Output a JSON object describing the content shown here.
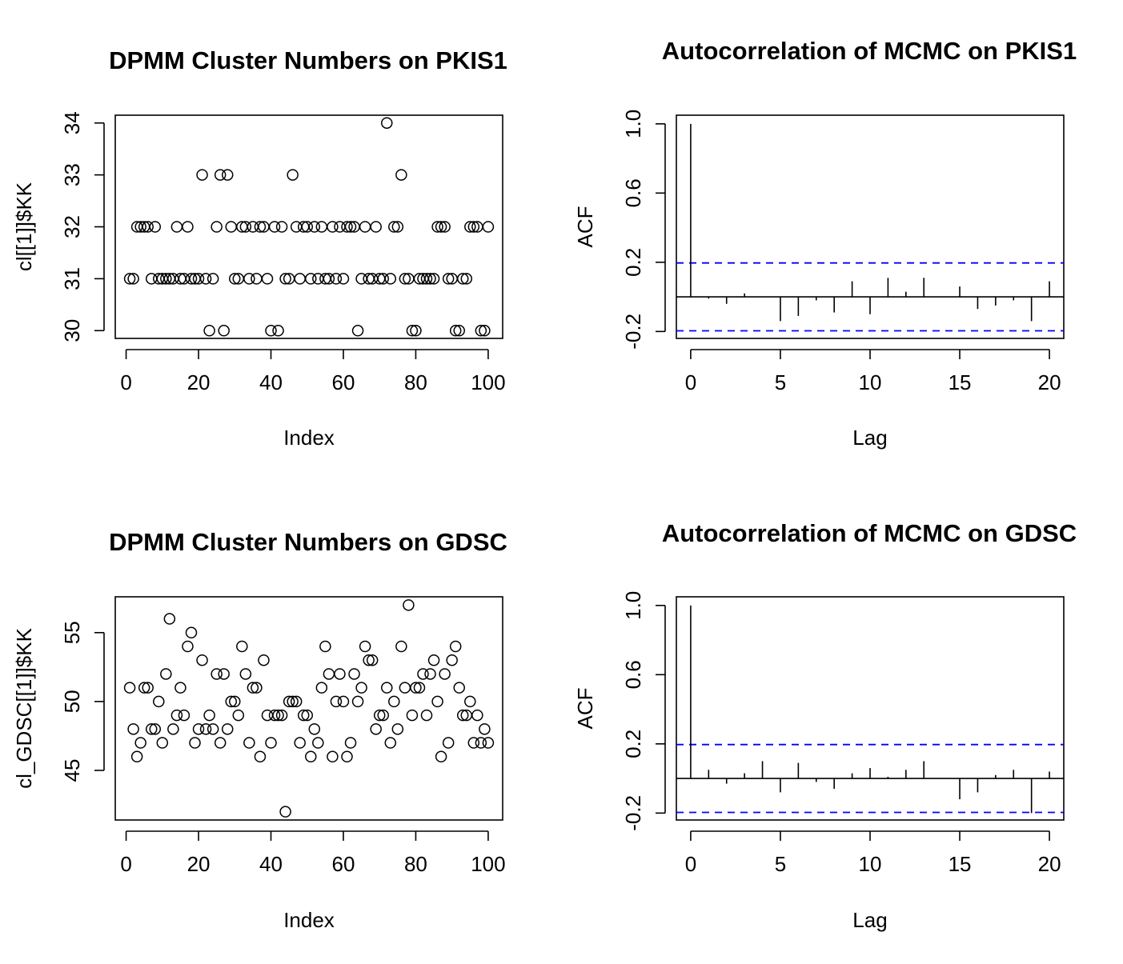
{
  "chart_data": [
    {
      "type": "scatter",
      "title": "DPMM Cluster Numbers on PKIS1",
      "xlabel": "Index",
      "ylabel": "cl[[1]]$KK",
      "xlim": [
        -3,
        104
      ],
      "ylim": [
        29.85,
        34.15
      ],
      "xticks": [
        0,
        20,
        40,
        60,
        80,
        100
      ],
      "yticks": [
        30,
        31,
        32,
        33,
        34
      ],
      "x": [
        1,
        2,
        3,
        4,
        5,
        6,
        7,
        8,
        9,
        10,
        11,
        12,
        13,
        14,
        15,
        16,
        17,
        18,
        19,
        20,
        21,
        22,
        23,
        24,
        25,
        26,
        27,
        28,
        29,
        30,
        31,
        32,
        33,
        34,
        35,
        36,
        37,
        38,
        39,
        40,
        41,
        42,
        43,
        44,
        45,
        46,
        47,
        48,
        49,
        50,
        51,
        52,
        53,
        54,
        55,
        56,
        57,
        58,
        59,
        60,
        61,
        62,
        63,
        64,
        65,
        66,
        67,
        68,
        69,
        70,
        71,
        72,
        73,
        74,
        75,
        76,
        77,
        78,
        79,
        80,
        81,
        82,
        83,
        84,
        85,
        86,
        87,
        88,
        89,
        90,
        91,
        92,
        93,
        94,
        95,
        96,
        97,
        98,
        99,
        100
      ],
      "y": [
        31,
        31,
        32,
        32,
        32,
        32,
        31,
        32,
        31,
        31,
        31,
        31,
        31,
        32,
        31,
        31,
        32,
        31,
        31,
        31,
        33,
        31,
        30,
        31,
        32,
        33,
        30,
        33,
        32,
        31,
        31,
        32,
        32,
        31,
        32,
        31,
        32,
        32,
        31,
        30,
        32,
        30,
        32,
        31,
        31,
        33,
        32,
        31,
        32,
        32,
        31,
        32,
        31,
        32,
        31,
        31,
        32,
        31,
        32,
        31,
        32,
        32,
        32,
        30,
        31,
        32,
        31,
        31,
        32,
        31,
        31,
        34,
        31,
        32,
        32,
        33,
        31,
        31,
        30,
        30,
        31,
        31,
        31,
        31,
        31,
        32,
        32,
        32,
        31,
        31,
        30,
        30,
        31,
        31,
        32,
        32,
        32,
        30,
        30,
        32
      ]
    },
    {
      "type": "bar",
      "title": "Autocorrelation of MCMC on PKIS1",
      "xlabel": "Lag",
      "ylabel": "ACF",
      "xlim": [
        -0.8,
        20.8
      ],
      "ylim": [
        -0.24,
        1.05
      ],
      "xticks": [
        0,
        5,
        10,
        15,
        20
      ],
      "yticks": [
        -0.2,
        0.2,
        0.6,
        1.0
      ],
      "ytick_labels": [
        "-0.2",
        "0.2",
        "0.6",
        "1.0"
      ],
      "lags": [
        0,
        1,
        2,
        3,
        4,
        5,
        6,
        7,
        8,
        9,
        10,
        11,
        12,
        13,
        14,
        15,
        16,
        17,
        18,
        19,
        20
      ],
      "values": [
        1.0,
        -0.01,
        -0.04,
        0.02,
        0.0,
        -0.14,
        -0.11,
        -0.02,
        -0.09,
        0.09,
        -0.1,
        0.11,
        0.03,
        0.11,
        0.0,
        0.06,
        -0.07,
        -0.05,
        -0.02,
        -0.14,
        0.09
      ],
      "confidence_bound": 0.196
    },
    {
      "type": "scatter",
      "title": "DPMM Cluster Numbers on GDSC",
      "xlabel": "Index",
      "ylabel": "cl_GDSC[[1]]$KK",
      "xlim": [
        -3,
        104
      ],
      "ylim": [
        41.4,
        57.6
      ],
      "xticks": [
        0,
        20,
        40,
        60,
        80,
        100
      ],
      "yticks": [
        45,
        50,
        55
      ],
      "x": [
        1,
        2,
        3,
        4,
        5,
        6,
        7,
        8,
        9,
        10,
        11,
        12,
        13,
        14,
        15,
        16,
        17,
        18,
        19,
        20,
        21,
        22,
        23,
        24,
        25,
        26,
        27,
        28,
        29,
        30,
        31,
        32,
        33,
        34,
        35,
        36,
        37,
        38,
        39,
        40,
        41,
        42,
        43,
        44,
        45,
        46,
        47,
        48,
        49,
        50,
        51,
        52,
        53,
        54,
        55,
        56,
        57,
        58,
        59,
        60,
        61,
        62,
        63,
        64,
        65,
        66,
        67,
        68,
        69,
        70,
        71,
        72,
        73,
        74,
        75,
        76,
        77,
        78,
        79,
        80,
        81,
        82,
        83,
        84,
        85,
        86,
        87,
        88,
        89,
        90,
        91,
        92,
        93,
        94,
        95,
        96,
        97,
        98,
        99,
        100
      ],
      "y": [
        51,
        48,
        46,
        47,
        51,
        51,
        48,
        48,
        50,
        47,
        52,
        56,
        48,
        49,
        51,
        49,
        54,
        55,
        47,
        48,
        53,
        48,
        49,
        48,
        52,
        47,
        52,
        48,
        50,
        50,
        49,
        54,
        52,
        47,
        51,
        51,
        46,
        53,
        49,
        47,
        49,
        49,
        49,
        42,
        50,
        50,
        50,
        47,
        49,
        49,
        46,
        48,
        47,
        51,
        54,
        52,
        46,
        50,
        52,
        50,
        46,
        47,
        52,
        50,
        51,
        54,
        53,
        53,
        48,
        49,
        49,
        51,
        47,
        50,
        48,
        54,
        51,
        57,
        49,
        51,
        51,
        52,
        49,
        52,
        53,
        50,
        46,
        52,
        47,
        53,
        54,
        51,
        49,
        49,
        50,
        47,
        49,
        47,
        48,
        47
      ]
    },
    {
      "type": "bar",
      "title": "Autocorrelation of MCMC on GDSC",
      "xlabel": "Lag",
      "ylabel": "ACF",
      "xlim": [
        -0.8,
        20.8
      ],
      "ylim": [
        -0.24,
        1.05
      ],
      "xticks": [
        0,
        5,
        10,
        15,
        20
      ],
      "yticks": [
        -0.2,
        0.2,
        0.6,
        1.0
      ],
      "ytick_labels": [
        "-0.2",
        "0.2",
        "0.6",
        "1.0"
      ],
      "lags": [
        0,
        1,
        2,
        3,
        4,
        5,
        6,
        7,
        8,
        9,
        10,
        11,
        12,
        13,
        14,
        15,
        16,
        17,
        18,
        19,
        20
      ],
      "values": [
        1.0,
        0.05,
        -0.03,
        0.03,
        0.1,
        -0.08,
        0.09,
        -0.02,
        -0.06,
        0.03,
        0.06,
        0.01,
        0.05,
        0.1,
        0.0,
        -0.12,
        -0.08,
        0.02,
        0.05,
        -0.2,
        0.04
      ],
      "confidence_bound": 0.196
    }
  ]
}
